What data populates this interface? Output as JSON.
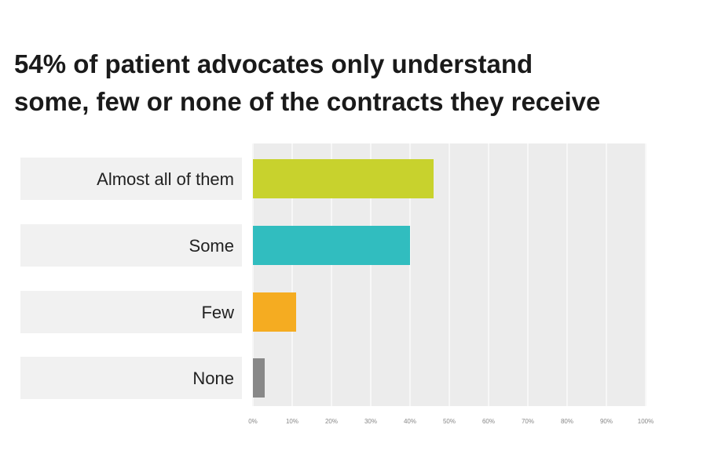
{
  "chart_data": {
    "type": "bar",
    "orientation": "horizontal",
    "title": "54% of patient advocates only understand some, few or none of the contracts they receive",
    "title_lines": [
      "54% of patient advocates only understand",
      "some, few or none of the contracts they receive"
    ],
    "categories": [
      "Almost all of them",
      "Some",
      "Few",
      "None"
    ],
    "values": [
      46,
      40,
      11,
      3
    ],
    "value_unit": "%",
    "colors": [
      "#c8d22d",
      "#31bdbf",
      "#f5ac21",
      "#888888"
    ],
    "xlim": [
      0,
      100
    ],
    "x_ticks": [
      "0%",
      "10%",
      "20%",
      "30%",
      "40%",
      "50%",
      "60%",
      "70%",
      "80%",
      "90%",
      "100%"
    ],
    "xlabel": "",
    "ylabel": "",
    "grid": true,
    "legend": "none"
  }
}
